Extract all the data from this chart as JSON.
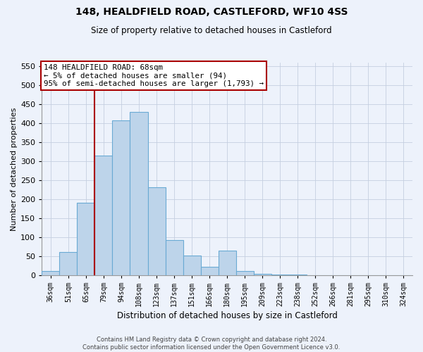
{
  "title1": "148, HEALDFIELD ROAD, CASTLEFORD, WF10 4SS",
  "title2": "Size of property relative to detached houses in Castleford",
  "xlabel": "Distribution of detached houses by size in Castleford",
  "ylabel": "Number of detached properties",
  "footer": "Contains HM Land Registry data © Crown copyright and database right 2024.\nContains public sector information licensed under the Open Government Licence v3.0.",
  "categories": [
    "36sqm",
    "51sqm",
    "65sqm",
    "79sqm",
    "94sqm",
    "108sqm",
    "123sqm",
    "137sqm",
    "151sqm",
    "166sqm",
    "180sqm",
    "195sqm",
    "209sqm",
    "223sqm",
    "238sqm",
    "252sqm",
    "266sqm",
    "281sqm",
    "295sqm",
    "310sqm",
    "324sqm"
  ],
  "heights": [
    10,
    60,
    190,
    315,
    408,
    430,
    232,
    93,
    52,
    22,
    65,
    10,
    4,
    2,
    1,
    0,
    0,
    0,
    0,
    0,
    0
  ],
  "ylim_max": 560,
  "yticks": [
    0,
    50,
    100,
    150,
    200,
    250,
    300,
    350,
    400,
    450,
    500,
    550
  ],
  "bar_color": "#bdd4ea",
  "bar_edge_color": "#6aaad4",
  "vline_x": 2.5,
  "vline_color": "#aa0000",
  "annotation_text": "148 HEALDFIELD ROAD: 68sqm\n← 5% of detached houses are smaller (94)\n95% of semi-detached houses are larger (1,793) →",
  "bg_color": "#edf2fb",
  "grid_color": "#c5cfe0"
}
